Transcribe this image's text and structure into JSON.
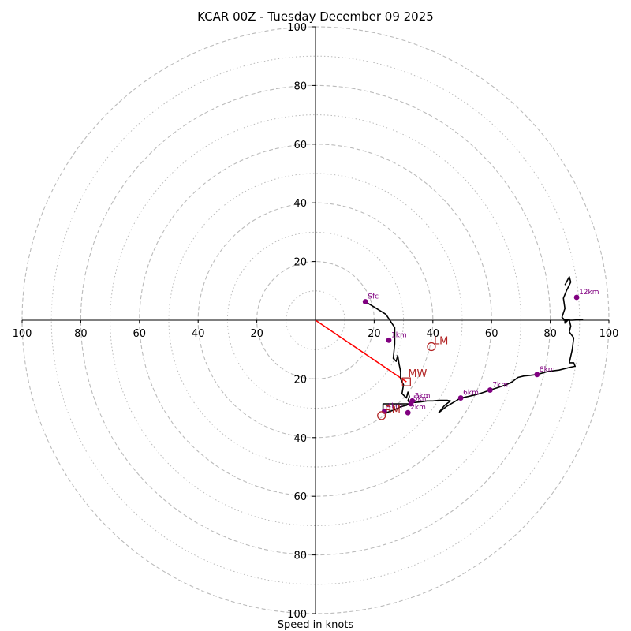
{
  "chart_data": {
    "type": "hodograph",
    "title": "KCAR 00Z - Tuesday December 09 2025",
    "xlabel": "Speed in knots",
    "axis_range": [
      -100,
      100
    ],
    "ring_major": [
      20,
      40,
      60,
      80,
      100
    ],
    "ring_minor": [
      10,
      30,
      50,
      70,
      90
    ],
    "x_ticks": [
      {
        "v": -100,
        "label": "100"
      },
      {
        "v": -80,
        "label": "80"
      },
      {
        "v": -60,
        "label": "60"
      },
      {
        "v": -40,
        "label": "40"
      },
      {
        "v": -20,
        "label": "20"
      },
      {
        "v": 20,
        "label": "20"
      },
      {
        "v": 40,
        "label": "40"
      },
      {
        "v": 60,
        "label": "60"
      },
      {
        "v": 80,
        "label": "80"
      },
      {
        "v": 100,
        "label": "100"
      }
    ],
    "y_ticks": [
      {
        "v": 100,
        "label": "100"
      },
      {
        "v": 80,
        "label": "80"
      },
      {
        "v": 60,
        "label": "60"
      },
      {
        "v": 40,
        "label": "40"
      },
      {
        "v": 20,
        "label": "20"
      },
      {
        "v": -20,
        "label": "20"
      },
      {
        "v": -40,
        "label": "40"
      },
      {
        "v": -60,
        "label": "60"
      },
      {
        "v": -80,
        "label": "80"
      },
      {
        "v": -100,
        "label": "100"
      }
    ],
    "hodograph_trace": [
      [
        17,
        6.3
      ],
      [
        20,
        4.5
      ],
      [
        24,
        2
      ],
      [
        27,
        -2.5
      ],
      [
        27,
        -8
      ],
      [
        26.5,
        -13
      ],
      [
        27.5,
        -14
      ],
      [
        28,
        -12
      ],
      [
        28.5,
        -15
      ],
      [
        29,
        -17.5
      ],
      [
        29,
        -20
      ],
      [
        30,
        -22
      ],
      [
        29.5,
        -25
      ],
      [
        31,
        -26.5
      ],
      [
        31.5,
        -24.5
      ],
      [
        32,
        -26
      ],
      [
        31.5,
        -27.5
      ],
      [
        32.5,
        -28.5
      ],
      [
        30,
        -28.5
      ],
      [
        27,
        -28.5
      ],
      [
        23,
        -28.5
      ],
      [
        23,
        -31
      ],
      [
        24,
        -31.5
      ],
      [
        27,
        -30.5
      ],
      [
        29,
        -29.5
      ],
      [
        31,
        -29
      ],
      [
        32.5,
        -28
      ],
      [
        34,
        -28
      ],
      [
        36,
        -27.8
      ],
      [
        38,
        -27.5
      ],
      [
        40,
        -27.5
      ],
      [
        42,
        -27.3
      ],
      [
        45,
        -27.3
      ],
      [
        46,
        -27.5
      ],
      [
        44,
        -29
      ],
      [
        42,
        -31.5
      ],
      [
        44.5,
        -29.5
      ],
      [
        47,
        -28
      ],
      [
        49.5,
        -26.5
      ],
      [
        52,
        -26
      ],
      [
        55,
        -25.3
      ],
      [
        57.5,
        -24.5
      ],
      [
        59.5,
        -23.8
      ],
      [
        62,
        -23
      ],
      [
        65,
        -22
      ],
      [
        67,
        -21
      ],
      [
        69,
        -19.5
      ],
      [
        71,
        -19
      ],
      [
        73,
        -18.8
      ],
      [
        75.5,
        -18.5
      ],
      [
        79,
        -17.5
      ],
      [
        83,
        -17
      ],
      [
        87,
        -16
      ],
      [
        88.5,
        -15.7
      ],
      [
        88,
        -14.5
      ],
      [
        86.5,
        -14.5
      ],
      [
        87.5,
        -10
      ],
      [
        88,
        -6
      ],
      [
        86.5,
        -4
      ],
      [
        87,
        -2
      ],
      [
        86.5,
        0
      ],
      [
        86.5,
        0.2
      ],
      [
        84.5,
        0
      ],
      [
        87.5,
        0
      ],
      [
        91,
        0.2
      ],
      [
        87.5,
        0
      ],
      [
        86,
        0
      ],
      [
        85,
        -1
      ],
      [
        85,
        0
      ],
      [
        84,
        1
      ],
      [
        85,
        4
      ],
      [
        84.5,
        7.5
      ],
      [
        85.5,
        10
      ],
      [
        87,
        13
      ],
      [
        86.5,
        14.8
      ],
      [
        85,
        12
      ]
    ],
    "height_points": [
      {
        "label": "Sfc",
        "u": 17,
        "v": 6.3
      },
      {
        "label": "1km",
        "u": 25,
        "v": -6.8
      },
      {
        "label": "2km",
        "u": 31.5,
        "v": -31.5
      },
      {
        "label": "3km",
        "u": 33,
        "v": -27.5
      },
      {
        "label": "4km",
        "u": 23.5,
        "v": -31
      },
      {
        "label": "5km",
        "u": 32.5,
        "v": -28.5
      },
      {
        "label": "6km",
        "u": 49.5,
        "v": -26.5
      },
      {
        "label": "7km",
        "u": 59.5,
        "v": -23.8
      },
      {
        "label": "8km",
        "u": 75.5,
        "v": -18.5
      },
      {
        "label": "12km",
        "u": 89,
        "v": 7.8
      }
    ],
    "storm_motion": {
      "mean_wind": {
        "label": "MW",
        "u": 31,
        "v": -21
      },
      "right_mover": {
        "label": "RM",
        "u": 22.5,
        "v": -32.5
      },
      "left_mover": {
        "label": "LM",
        "u": 39.5,
        "v": -9
      }
    },
    "colors": {
      "trace": "#000000",
      "points": "#800080",
      "motion": "#b22222",
      "shear_vector": "#ff0000",
      "grid": "#bbbbbb"
    }
  }
}
